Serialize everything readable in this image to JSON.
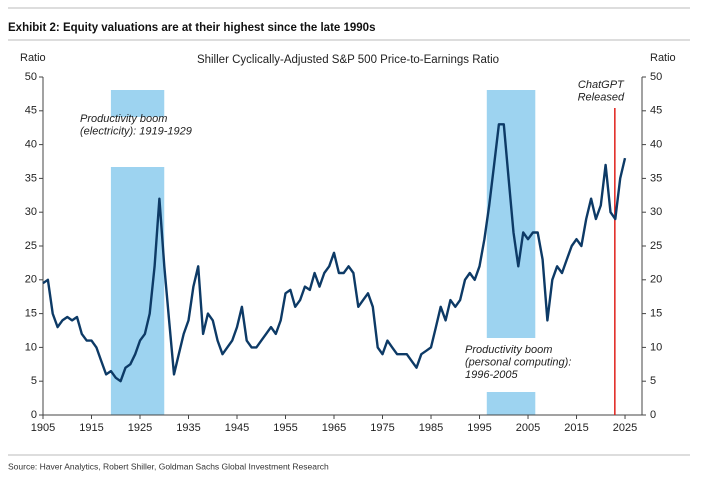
{
  "header": "Exhibit 2: Equity valuations are at their highest since the late 1990s",
  "source": "Source: Haver Analytics, Robert Shiller, Goldman Sachs Global Investment Research",
  "chart_data": {
    "type": "line",
    "title": "Shiller Cyclically-Adjusted S&P 500 Price-to-Earnings Ratio",
    "y_label": "Ratio",
    "y2_label": "Ratio",
    "x": [
      1905,
      1906,
      1907,
      1908,
      1909,
      1910,
      1911,
      1912,
      1913,
      1914,
      1915,
      1916,
      1917,
      1918,
      1919,
      1920,
      1921,
      1922,
      1923,
      1924,
      1925,
      1926,
      1927,
      1928,
      1929,
      1930,
      1931,
      1932,
      1933,
      1934,
      1935,
      1936,
      1937,
      1938,
      1939,
      1940,
      1941,
      1942,
      1943,
      1944,
      1945,
      1946,
      1947,
      1948,
      1949,
      1950,
      1951,
      1952,
      1953,
      1954,
      1955,
      1956,
      1957,
      1958,
      1959,
      1960,
      1961,
      1962,
      1963,
      1964,
      1965,
      1966,
      1967,
      1968,
      1969,
      1970,
      1971,
      1972,
      1973,
      1974,
      1975,
      1976,
      1977,
      1978,
      1979,
      1980,
      1981,
      1982,
      1983,
      1984,
      1985,
      1986,
      1987,
      1988,
      1989,
      1990,
      1991,
      1992,
      1993,
      1994,
      1995,
      1996,
      1997,
      1998,
      1999,
      2000,
      2001,
      2002,
      2003,
      2004,
      2005,
      2006,
      2007,
      2008,
      2009,
      2010,
      2011,
      2012,
      2013,
      2014,
      2015,
      2016,
      2017,
      2018,
      2019,
      2020,
      2021,
      2022,
      2023,
      2024,
      2025
    ],
    "series": [
      {
        "name": "CAPE",
        "color": "#0d3a66",
        "values": [
          19.5,
          20,
          15,
          13,
          14,
          14.5,
          14,
          14.5,
          12,
          11,
          11,
          10,
          8,
          6,
          6.5,
          5.5,
          5,
          7,
          7.5,
          9,
          11,
          12,
          15,
          22,
          32,
          22,
          14,
          6,
          9,
          12,
          14,
          19,
          22,
          12,
          15,
          14,
          11,
          9,
          10,
          11,
          13,
          16,
          11,
          10,
          10,
          11,
          12,
          13,
          12,
          14,
          18,
          18.5,
          16,
          17,
          19,
          18.5,
          21,
          19,
          21,
          22,
          24,
          21,
          21,
          22,
          21,
          16,
          17,
          18,
          16,
          10,
          9,
          11,
          10,
          9,
          9,
          9,
          8,
          7,
          9,
          9.5,
          10,
          13,
          16,
          14,
          17,
          16,
          17,
          20,
          21,
          20,
          22,
          26,
          31,
          37,
          43,
          43,
          35,
          27,
          22,
          27,
          26,
          27,
          27,
          23,
          14,
          20,
          22,
          21,
          23,
          25,
          26,
          25,
          29,
          32,
          29,
          31,
          37,
          30,
          29,
          35,
          38
        ]
      }
    ],
    "xlim": [
      1905,
      2028.5
    ],
    "xticks": [
      1905,
      1915,
      1925,
      1935,
      1945,
      1955,
      1965,
      1975,
      1985,
      1995,
      2005,
      2015,
      2025
    ],
    "ylim": [
      0,
      50
    ],
    "yticks": [
      0,
      5,
      10,
      15,
      20,
      25,
      30,
      35,
      40,
      45,
      50
    ],
    "y2lim": [
      0,
      50
    ],
    "y2ticks": [
      0,
      5,
      10,
      15,
      20,
      25,
      30,
      35,
      40,
      45,
      50
    ],
    "shaded_periods": [
      {
        "start": 1919,
        "end": 1930,
        "color": "#9dd3f0",
        "label": [
          "Productivity boom",
          "(electricity): 1919-1929"
        ]
      },
      {
        "start": 1996.5,
        "end": 2006.5,
        "color": "#9dd3f0",
        "label": [
          "Productivity boom",
          "(personal computing):",
          "1996-2005"
        ]
      }
    ],
    "event": {
      "x": 2022.9,
      "color": "#e0201b",
      "label": [
        "ChatGPT",
        "Released"
      ]
    }
  }
}
